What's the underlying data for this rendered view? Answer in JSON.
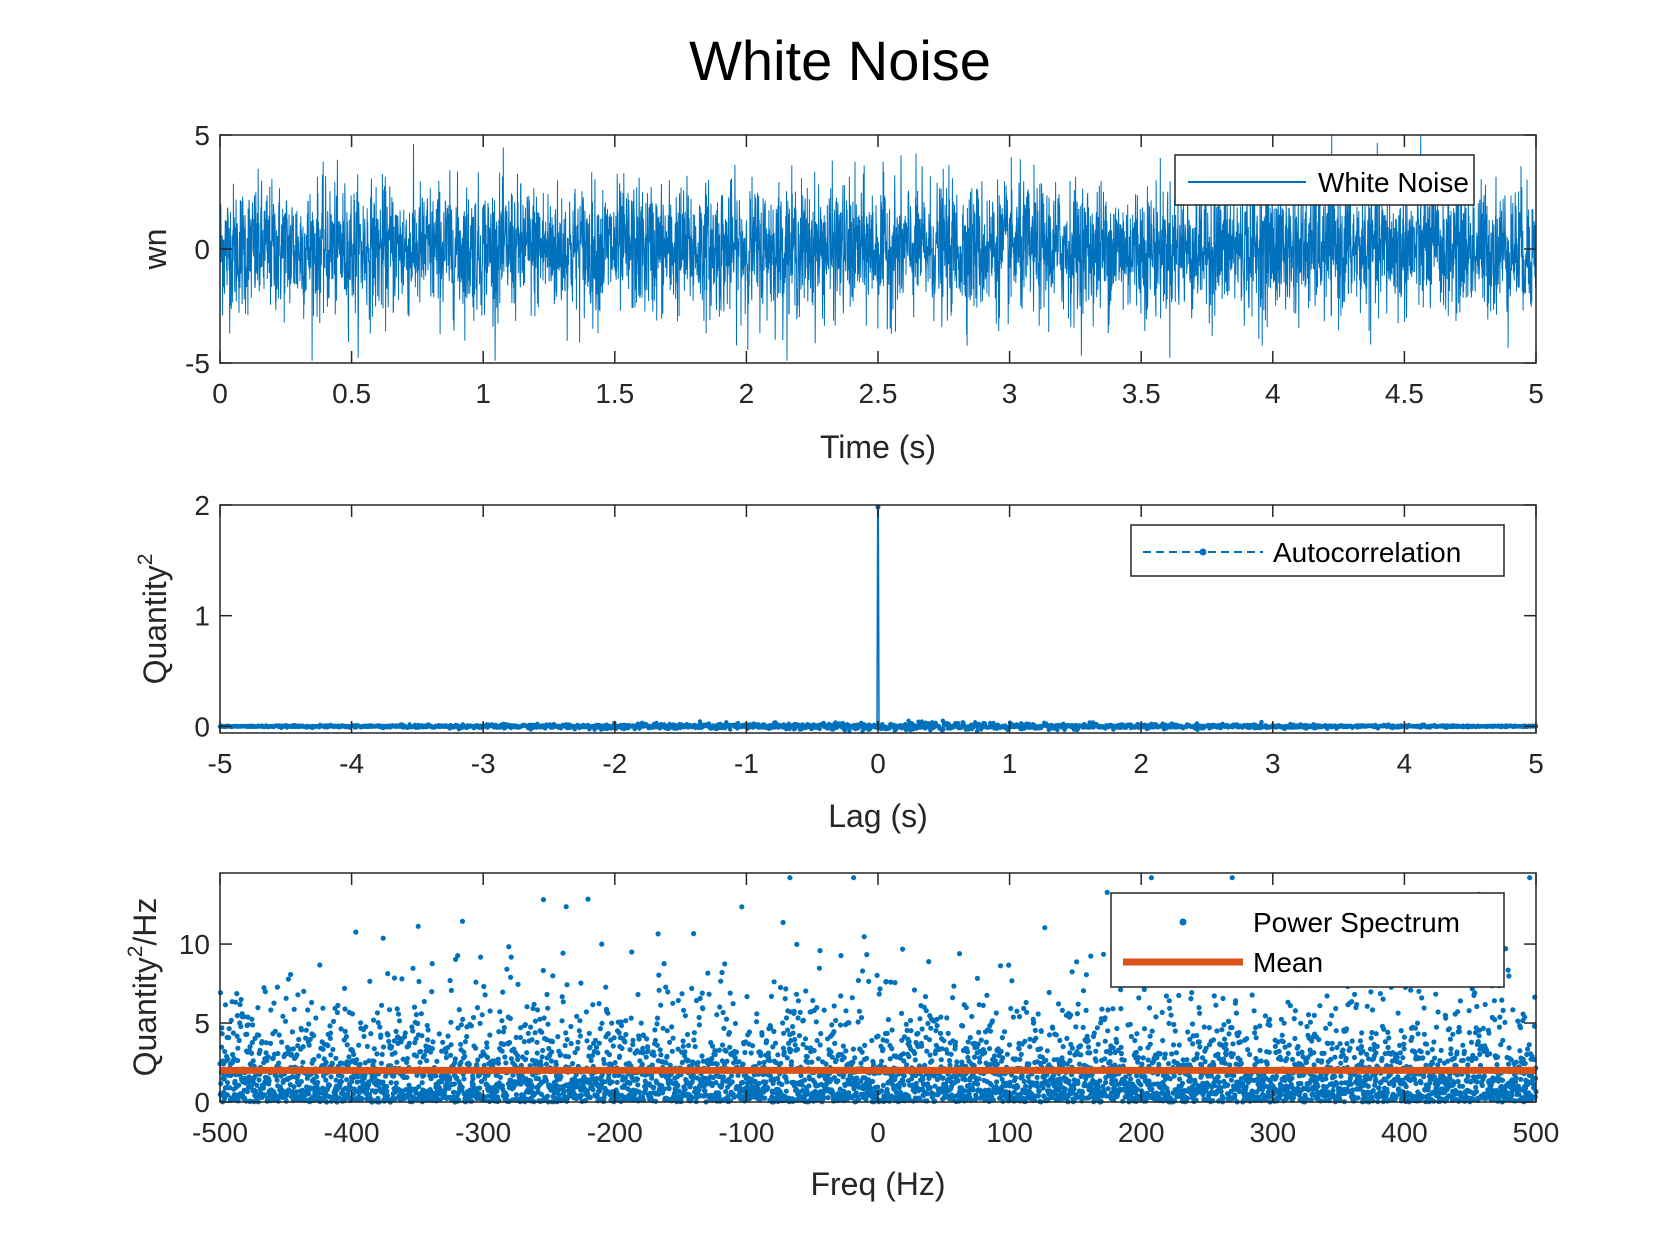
{
  "figure": {
    "title": "White Noise"
  },
  "chart_data": [
    {
      "type": "line",
      "xlabel": "Time (s)",
      "ylabel": "wn",
      "xlim": [
        0,
        5
      ],
      "ylim": [
        -5,
        5
      ],
      "xticks": [
        "0",
        "0.5",
        "1",
        "1.5",
        "2",
        "2.5",
        "3",
        "3.5",
        "4",
        "4.5",
        "5"
      ],
      "yticks": [
        "-5",
        "0",
        "5"
      ],
      "grid": false,
      "legend_position": "top-right",
      "series": [
        {
          "name": "White Noise",
          "color": "#0072BD",
          "samples": 5000,
          "mean": 0,
          "std": 1.41,
          "min": -4.9,
          "max": 5.0
        }
      ]
    },
    {
      "type": "line",
      "xlabel": "Lag (s)",
      "ylabel": "Quantity",
      "ylabel_superscript": "2",
      "xlim": [
        -5,
        5
      ],
      "ylim": [
        -0.06,
        2
      ],
      "xticks": [
        "-5",
        "-4",
        "-3",
        "-2",
        "-1",
        "0",
        "1",
        "2",
        "3",
        "4",
        "5"
      ],
      "yticks": [
        "0",
        "1",
        "2"
      ],
      "grid": false,
      "legend_position": "top-right",
      "series": [
        {
          "name": "Autocorrelation",
          "color": "#0072BD",
          "line_style": "dashed",
          "marker": "dot",
          "peak_x": 0,
          "peak_y": 1.98,
          "baseline_y": 0,
          "noise_amplitude": 0.05
        }
      ]
    },
    {
      "type": "scatter",
      "xlabel": "Freq (Hz)",
      "ylabel": "Quantity",
      "ylabel_superscript": "2",
      "ylabel_suffix": "/Hz",
      "xlim": [
        -500,
        500
      ],
      "ylim": [
        0,
        14.5
      ],
      "xticks": [
        "-500",
        "-400",
        "-300",
        "-200",
        "-100",
        "0",
        "100",
        "200",
        "300",
        "400",
        "500"
      ],
      "yticks": [
        "0",
        "5",
        "10"
      ],
      "grid": false,
      "legend_position": "top-right",
      "series": [
        {
          "name": "Power Spectrum",
          "color": "#0072BD",
          "marker": "dot",
          "mean_value": 2.0,
          "max_value": 14.2
        },
        {
          "name": "Mean",
          "color": "#D95319",
          "value": 2.0
        }
      ]
    }
  ]
}
